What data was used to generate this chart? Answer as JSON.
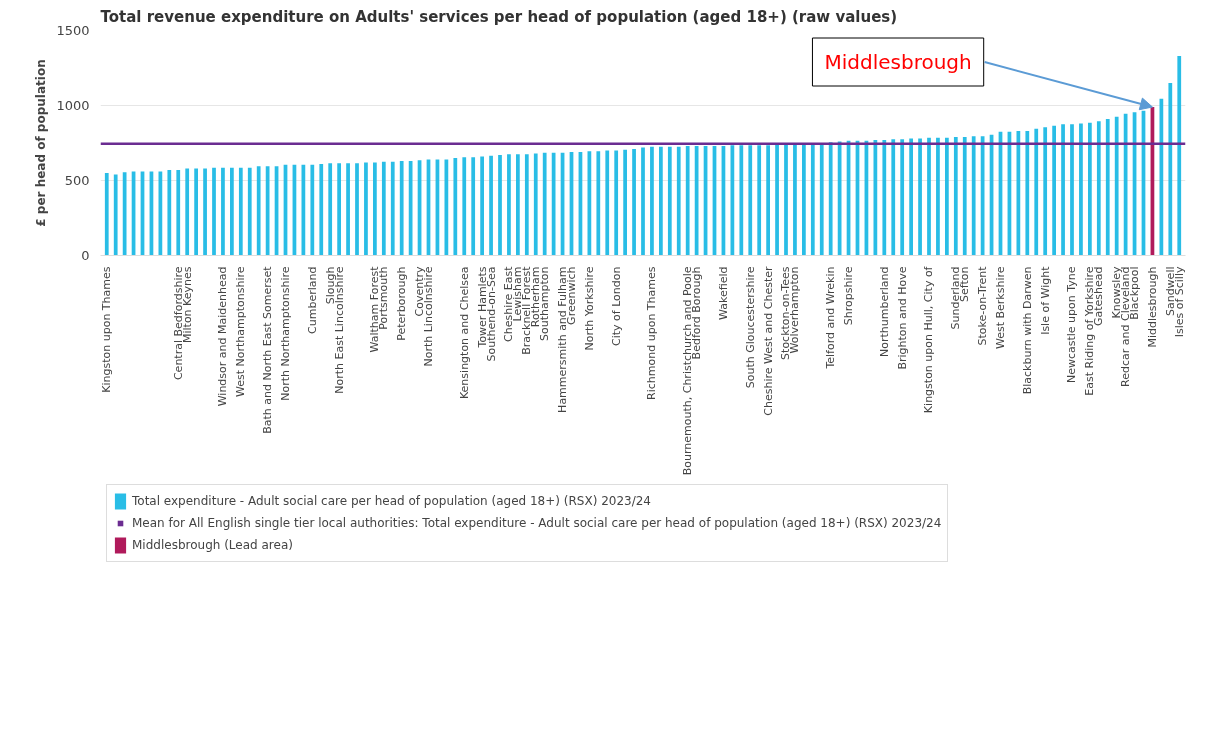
{
  "chart_data": {
    "type": "bar",
    "title": "Total revenue expenditure on Adults' services per head of population (aged 18+) (raw values)",
    "ylabel": "£ per head of population",
    "categories": [
      "Kingston upon Thames",
      null,
      null,
      null,
      null,
      null,
      null,
      null,
      "Central Bedfordshire",
      "Milton Keynes",
      null,
      null,
      null,
      "Windsor and Maidenhead",
      null,
      "West Northamptonshire",
      null,
      null,
      "Bath and North East Somerset",
      null,
      "North Northamptonshire",
      null,
      null,
      "Cumberland",
      null,
      "Slough",
      "North East Lincolnshire",
      null,
      null,
      null,
      "Waltham Forest",
      "Portsmouth",
      null,
      "Peterborough",
      null,
      "Coventry",
      "North Lincolnshire",
      null,
      null,
      null,
      "Kensington and Chelsea",
      null,
      "Tower Hamlets",
      "Southend-on-Sea",
      null,
      "Cheshire East",
      "Lewisham",
      "Bracknell Forest",
      "Rotherham",
      "Southampton",
      null,
      "Hammersmith and Fulham",
      "Greenwich",
      null,
      "North Yorkshire",
      null,
      null,
      "City of London",
      null,
      null,
      null,
      "Richmond upon Thames",
      null,
      null,
      null,
      "Bournemouth, Christchurch and Poole",
      "Bedford Borough",
      null,
      null,
      "Wakefield",
      null,
      null,
      "South Gloucestershire",
      null,
      "Cheshire West and Chester",
      null,
      "Stockton-on-Tees",
      "Wolverhampton",
      null,
      null,
      null,
      "Telford and Wrekin",
      null,
      "Shropshire",
      null,
      null,
      null,
      "Northumberland",
      null,
      "Brighton and Hove",
      null,
      null,
      "Kingston upon Hull, City of",
      null,
      null,
      "Sunderland",
      "Sefton",
      null,
      "Stoke-on-Trent",
      null,
      "West Berkshire",
      null,
      null,
      "Blackburn with Darwen",
      null,
      "Isle of Wight",
      null,
      null,
      "Newcastle upon Tyne",
      null,
      "East Riding of Yorkshire",
      "Gateshead",
      null,
      "Knowsley",
      "Redcar and Cleveland",
      "Blackpool",
      null,
      "Middlesbrough",
      null,
      "Sandwell",
      "Isles of Scilly"
    ],
    "series": [
      {
        "name": "Total expenditure - Adult social care per head of population (aged 18+) (RSX) 2023/24",
        "color": "#29bde6",
        "values": [
          550,
          540,
          555,
          560,
          560,
          560,
          560,
          570,
          570,
          580,
          580,
          580,
          585,
          585,
          585,
          585,
          585,
          595,
          595,
          595,
          605,
          605,
          605,
          605,
          610,
          615,
          615,
          615,
          615,
          620,
          620,
          625,
          625,
          630,
          630,
          635,
          640,
          640,
          640,
          650,
          655,
          655,
          660,
          665,
          670,
          675,
          675,
          675,
          680,
          685,
          685,
          685,
          690,
          690,
          695,
          695,
          700,
          700,
          705,
          710,
          720,
          725,
          725,
          725,
          725,
          730,
          730,
          730,
          730,
          730,
          735,
          735,
          735,
          735,
          735,
          740,
          740,
          745,
          745,
          745,
          750,
          755,
          760,
          765,
          765,
          765,
          770,
          770,
          775,
          775,
          780,
          780,
          785,
          785,
          785,
          790,
          790,
          795,
          795,
          805,
          825,
          825,
          830,
          830,
          845,
          855,
          865,
          875,
          875,
          880,
          885,
          895,
          910,
          925,
          945,
          955,
          965,
          null,
          1045,
          1150,
          1330
        ]
      },
      {
        "name": "Middlesbrough (Lead area)",
        "color": "#b01a5b",
        "values": [
          null,
          null,
          null,
          null,
          null,
          null,
          null,
          null,
          null,
          null,
          null,
          null,
          null,
          null,
          null,
          null,
          null,
          null,
          null,
          null,
          null,
          null,
          null,
          null,
          null,
          null,
          null,
          null,
          null,
          null,
          null,
          null,
          null,
          null,
          null,
          null,
          null,
          null,
          null,
          null,
          null,
          null,
          null,
          null,
          null,
          null,
          null,
          null,
          null,
          null,
          null,
          null,
          null,
          null,
          null,
          null,
          null,
          null,
          null,
          null,
          null,
          null,
          null,
          null,
          null,
          null,
          null,
          null,
          null,
          null,
          null,
          null,
          null,
          null,
          null,
          null,
          null,
          null,
          null,
          null,
          null,
          null,
          null,
          null,
          null,
          null,
          null,
          null,
          null,
          null,
          null,
          null,
          null,
          null,
          null,
          null,
          null,
          null,
          null,
          null,
          null,
          null,
          null,
          null,
          null,
          null,
          null,
          null,
          null,
          null,
          null,
          null,
          null,
          null,
          null,
          null,
          null,
          990,
          null,
          null,
          null
        ]
      }
    ],
    "ref_lines": [
      {
        "axis": "y",
        "value": 745,
        "label": "Mean for All English single tier local authorities: Total expenditure - Adult social care per head of population (aged 18+) (RSX) 2023/24",
        "color": "#6b2c91"
      }
    ],
    "annotations": [
      {
        "text": "Middlesbrough",
        "x": "Middlesbrough",
        "y": 990
      }
    ],
    "ylim": [
      0,
      1500
    ],
    "yticks": [
      0,
      500,
      1000,
      1500
    ],
    "grid": "y",
    "legend": "bottom"
  }
}
